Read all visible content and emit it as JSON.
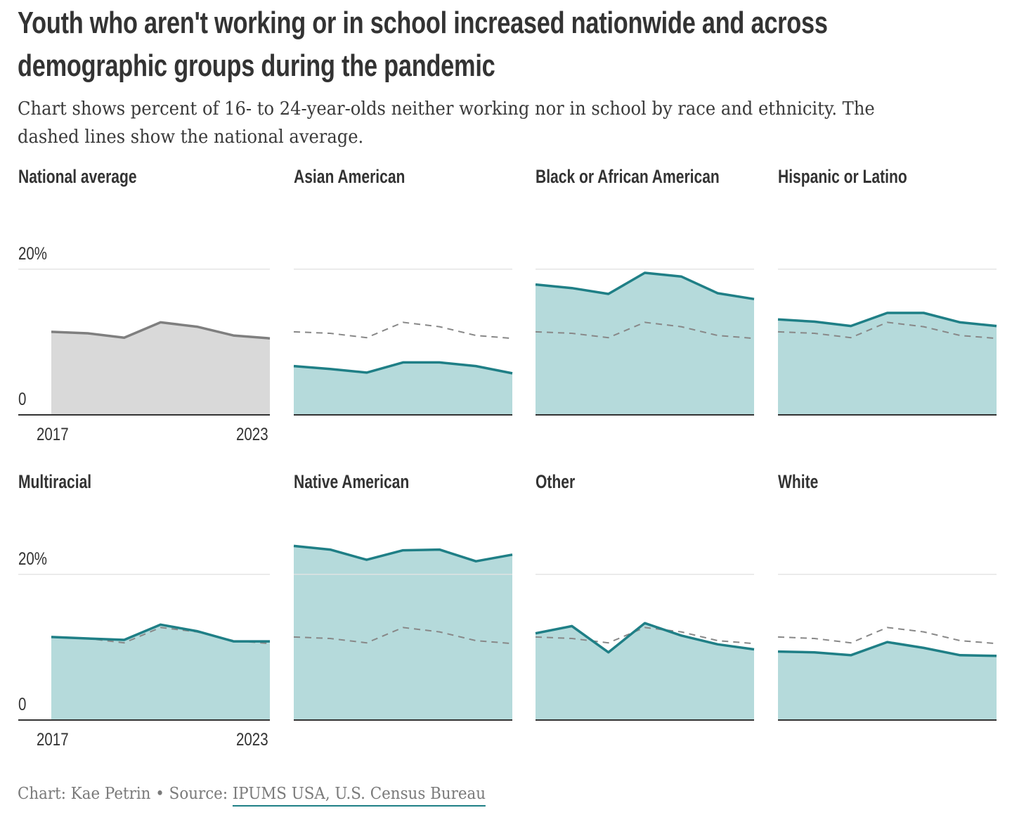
{
  "header": {
    "title_line1": "Youth who aren't working or in school increased nationwide and across",
    "title_line2": "demographic groups during the pandemic",
    "subtitle": "Chart shows percent of 16- to 24-year-olds neither working nor in school by race and ethnicity. The dashed lines show the national average."
  },
  "footer": {
    "credit": "Chart: Kae Petrin",
    "separator": " • ",
    "source_label": "Source: ",
    "source_link": "IPUMS USA, U.S. Census Bureau"
  },
  "colors": {
    "accent_line": "#1f7f86",
    "accent_fill": "#b5dadb",
    "national_line": "#7f7f7f",
    "national_fill": "#d9d9d9",
    "dashed_line": "#888888",
    "gridline": "#e3e3e3",
    "baseline": "#333333"
  },
  "chart_data": {
    "type": "area",
    "layout": "small-multiples",
    "title": "Youth who aren't working or in school increased nationwide and across demographic groups during the pandemic",
    "subtitle": "Chart shows percent of 16- to 24-year-olds neither working nor in school by race and ethnicity. The dashed lines show the national average.",
    "xlabel": "",
    "ylabel": "",
    "x": [
      2017,
      2018,
      2019,
      2020,
      2021,
      2022,
      2023
    ],
    "x_tick_labels": [
      "2017",
      "2023"
    ],
    "y_ticks": [
      0,
      20
    ],
    "y_tick_labels": [
      "0",
      "20%"
    ],
    "ylim": [
      0,
      25
    ],
    "grid": true,
    "reference_series": "National average",
    "series": [
      {
        "name": "National average",
        "values": [
          11.4,
          11.2,
          10.6,
          12.7,
          12.1,
          10.9,
          10.5
        ]
      },
      {
        "name": "Asian American",
        "values": [
          6.7,
          6.3,
          5.8,
          7.2,
          7.2,
          6.7,
          5.7
        ]
      },
      {
        "name": "Black or African American",
        "values": [
          17.9,
          17.4,
          16.6,
          19.5,
          19.0,
          16.7,
          15.9
        ]
      },
      {
        "name": "Hispanic or Latino",
        "values": [
          13.1,
          12.8,
          12.2,
          14.0,
          14.0,
          12.7,
          12.2
        ]
      },
      {
        "name": "Multiracial",
        "values": [
          11.4,
          11.2,
          11.0,
          13.1,
          12.2,
          10.8,
          10.8
        ]
      },
      {
        "name": "Native American",
        "values": [
          23.9,
          23.4,
          22.0,
          23.3,
          23.4,
          21.8,
          22.7
        ]
      },
      {
        "name": "Other",
        "values": [
          11.9,
          12.9,
          9.3,
          13.3,
          11.6,
          10.4,
          9.7
        ]
      },
      {
        "name": "White",
        "values": [
          9.4,
          9.3,
          8.9,
          10.7,
          9.9,
          8.9,
          8.8
        ]
      }
    ],
    "source": "Chart: Kae Petrin • Source: IPUMS USA, U.S. Census Bureau"
  }
}
